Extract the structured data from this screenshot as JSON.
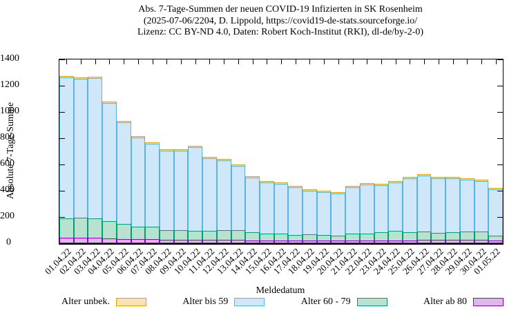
{
  "title": {
    "line1": "Abs. 7-Tage-Summen der neuen COVID-19 Infizierten in SK Rosenheim",
    "line2": "(2025-07-06/2204, D. Lippold, https://covid19-de-stats.sourceforge.io/",
    "line3": "Lizenz: CC BY-ND 4.0, Daten: Robert Koch-Institut (RKI), dl-de/by-2-0)"
  },
  "chart_data": {
    "type": "bar",
    "stacked": true,
    "title": "Abs. 7-Tage-Summen der neuen COVID-19 Infizierten in SK Rosenheim (2025-07-06/2204, D. Lippold, https://covid19-de-stats.sourceforge.io/ Lizenz: CC BY-ND 4.0, Daten: Robert Koch-Institut (RKI), dl-de/by-2-0)",
    "xlabel": "Meldedatum",
    "ylabel": "Absolute 7-Tage-Summe",
    "ylim": [
      0,
      1400
    ],
    "yticks": [
      0,
      200,
      400,
      600,
      800,
      1000,
      1200,
      1400
    ],
    "grid": false,
    "legend_position": "bottom",
    "categories": [
      "01.04.22",
      "02.04.22",
      "03.04.22",
      "04.04.22",
      "05.04.22",
      "06.04.22",
      "07.04.22",
      "08.04.22",
      "09.04.22",
      "10.04.22",
      "11.04.22",
      "12.04.22",
      "13.04.22",
      "14.04.22",
      "15.04.22",
      "16.04.22",
      "17.04.22",
      "18.04.22",
      "19.04.22",
      "20.04.22",
      "21.04.22",
      "22.04.22",
      "23.04.22",
      "24.04.22",
      "25.04.22",
      "26.04.22",
      "27.04.22",
      "28.04.22",
      "29.04.22",
      "30.04.22",
      "01.05.22"
    ],
    "series": [
      {
        "name": "Alter ab 80",
        "fill": "#dfb8ea",
        "border": "#9400d3",
        "values": [
          40,
          40,
          40,
          38,
          32,
          30,
          30,
          25,
          25,
          25,
          25,
          25,
          25,
          20,
          20,
          20,
          20,
          20,
          20,
          20,
          20,
          20,
          20,
          20,
          20,
          25,
          25,
          25,
          25,
          25,
          20
        ]
      },
      {
        "name": "Alter 60 - 79",
        "fill": "#b8e2cf",
        "border": "#009e73",
        "values": [
          150,
          155,
          150,
          132,
          118,
          95,
          95,
          75,
          75,
          70,
          70,
          75,
          75,
          65,
          55,
          55,
          45,
          50,
          45,
          40,
          55,
          55,
          65,
          75,
          65,
          65,
          55,
          60,
          65,
          65,
          40
        ]
      },
      {
        "name": "Alter bis 59",
        "fill": "#cfe7f8",
        "border": "#56b4e9",
        "values": [
          1075,
          1060,
          1070,
          900,
          770,
          680,
          635,
          605,
          605,
          635,
          555,
          530,
          490,
          415,
          390,
          380,
          360,
          330,
          325,
          320,
          350,
          370,
          355,
          370,
          410,
          425,
          415,
          410,
          395,
          385,
          350
        ]
      },
      {
        "name": "Alter unbek.",
        "fill": "#f9e3b4",
        "border": "#e69f00",
        "values": [
          4,
          4,
          4,
          4,
          4,
          4,
          4,
          4,
          4,
          4,
          4,
          4,
          4,
          4,
          4,
          4,
          4,
          4,
          4,
          4,
          4,
          4,
          4,
          4,
          4,
          4,
          4,
          4,
          4,
          4,
          4
        ]
      }
    ],
    "legend": [
      {
        "label": "Alter unbek.",
        "fill": "#f9e3b4",
        "border": "#e69f00"
      },
      {
        "label": "Alter bis 59",
        "fill": "#cfe7f8",
        "border": "#56b4e9"
      },
      {
        "label": "Alter 60 - 79",
        "fill": "#b8e2cf",
        "border": "#009e73"
      },
      {
        "label": "Alter ab 80",
        "fill": "#dfb8ea",
        "border": "#9400d3"
      }
    ]
  }
}
